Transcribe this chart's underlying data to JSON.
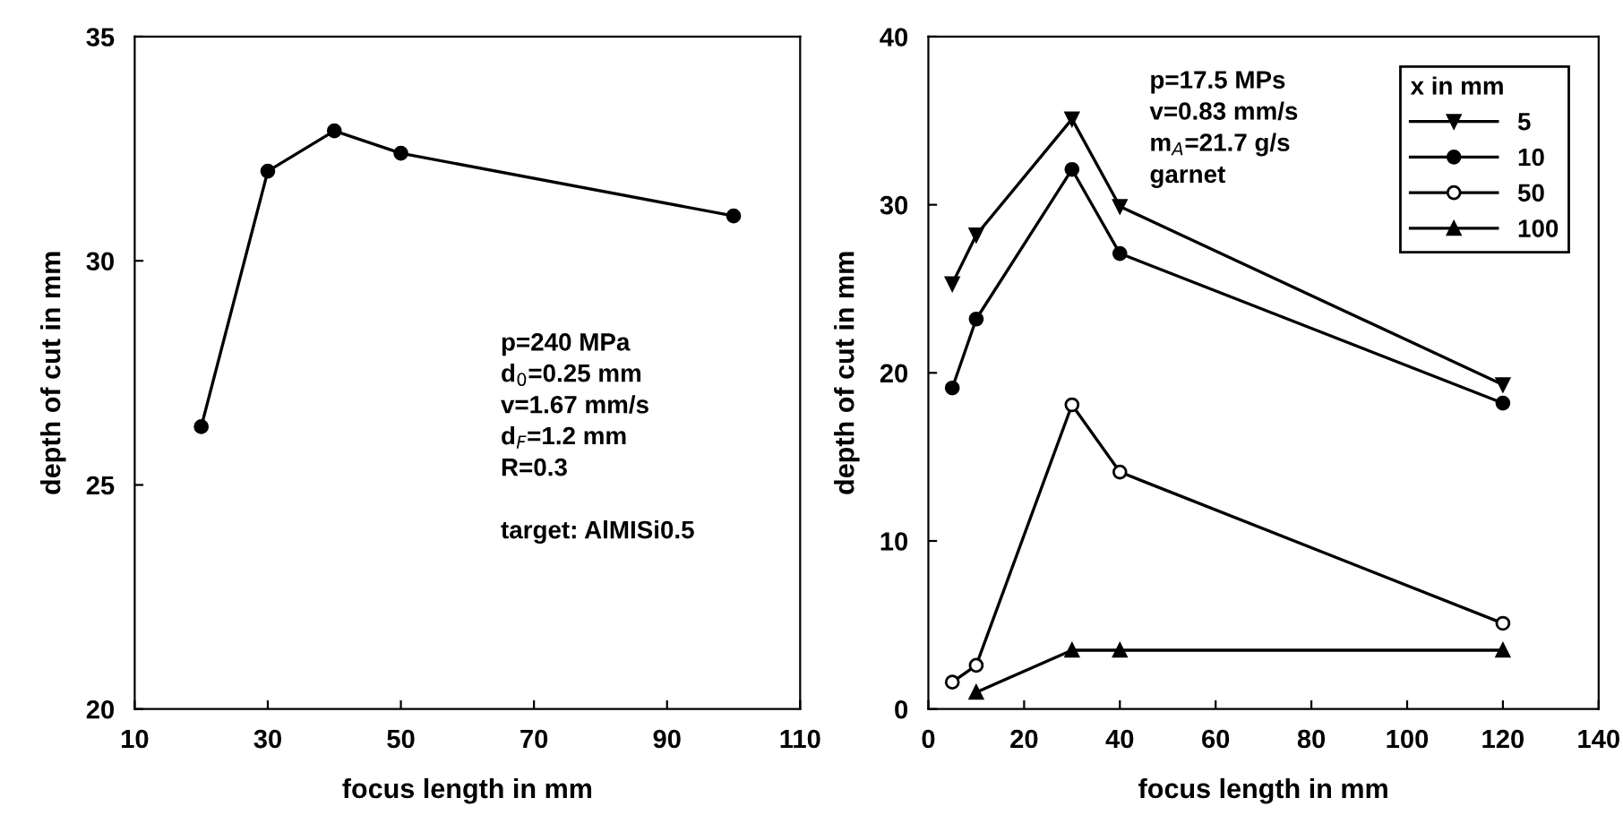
{
  "chart_data": [
    {
      "type": "line",
      "xlabel": "focus length in mm",
      "ylabel": "depth of cut in mm",
      "xlim": [
        10,
        110
      ],
      "xticks": [
        10,
        30,
        50,
        70,
        90,
        110
      ],
      "ylim": [
        20,
        35
      ],
      "yticks": [
        20,
        25,
        30,
        35
      ],
      "grid": false,
      "legend": false,
      "marker": "circle",
      "series": [
        {
          "color": "#000000",
          "x": [
            20,
            30,
            40,
            50,
            100
          ],
          "values": [
            26.3,
            32.0,
            32.9,
            32.4,
            31.0
          ]
        }
      ],
      "annotations": [
        "p=240 MPa",
        "d$_{0}$=0.25 mm",
        "v=1.67 mm/s",
        "d$_{F}$=1.2 mm",
        "R=0.3",
        "target: AlMISi0.5"
      ]
    },
    {
      "type": "line",
      "xlabel": "focus length in mm",
      "ylabel": "depth of cut in mm",
      "xlim": [
        0,
        140
      ],
      "xticks": [
        0,
        20,
        40,
        60,
        80,
        100,
        120,
        140
      ],
      "ylim": [
        0,
        40
      ],
      "yticks": [
        0,
        10,
        20,
        30,
        40
      ],
      "grid": false,
      "legend": "top right",
      "legend_title": "x in mm",
      "series": [
        {
          "name": "5",
          "color": "#000000",
          "marker": "triangle_down",
          "x": [
            5,
            10,
            30,
            40,
            120
          ],
          "values": [
            25.3,
            28.2,
            35.1,
            29.9,
            19.3
          ]
        },
        {
          "name": "10",
          "color": "#000000",
          "marker": "circle",
          "x": [
            5,
            10,
            30,
            40,
            120
          ],
          "values": [
            19.1,
            23.2,
            32.1,
            27.1,
            18.2
          ]
        },
        {
          "name": "50",
          "color": "#000000",
          "marker": "circle_open",
          "x": [
            5,
            10,
            30,
            40,
            120
          ],
          "values": [
            1.6,
            2.6,
            18.1,
            14.1,
            5.1
          ]
        },
        {
          "name": "100",
          "color": "#000000",
          "marker": "triangle",
          "x": [
            10,
            30,
            40,
            120
          ],
          "values": [
            1.0,
            3.5,
            3.5,
            3.5
          ]
        }
      ],
      "annotations": [
        "p=17.5 MPs",
        "v=0.83 mm/s",
        "m$_{A}$=21.7 g/s",
        "garnet"
      ]
    }
  ]
}
